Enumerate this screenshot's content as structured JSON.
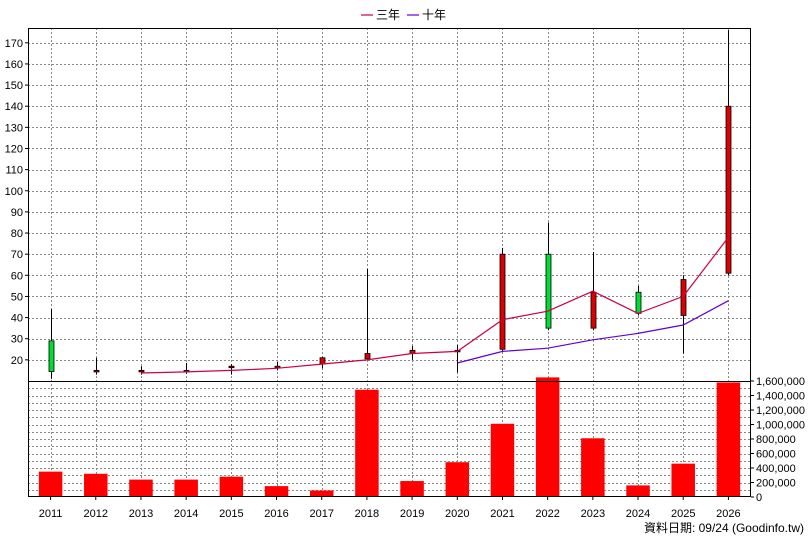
{
  "chart_data": {
    "type": "candlestick-with-volume",
    "legend": {
      "placement": "top-center",
      "items": [
        {
          "name": "三年",
          "color": "#cc0044"
        },
        {
          "name": "十年",
          "color": "#6600cc"
        }
      ]
    },
    "price_axis": {
      "ticks": [
        20,
        30,
        40,
        50,
        60,
        70,
        80,
        90,
        100,
        110,
        120,
        130,
        140,
        150,
        160,
        170
      ],
      "range": [
        10,
        177
      ],
      "position": "left"
    },
    "volume_axis": {
      "ticks": [
        "0",
        "200,000",
        "400,000",
        "600,000",
        "800,000",
        "1,000,000",
        "1,200,000",
        "1,400,000",
        "1,600,000"
      ],
      "range": [
        0,
        1600000
      ],
      "position": "right"
    },
    "grid": true,
    "years": [
      "2011",
      "2012",
      "2013",
      "2014",
      "2015",
      "2016",
      "2017",
      "2018",
      "2019",
      "2020",
      "2021",
      "2022",
      "2023",
      "2024",
      "2025",
      "2026"
    ],
    "ohlc": [
      {
        "open": 14.5,
        "high": 44,
        "low": 11,
        "close": 29
      },
      {
        "open": 15,
        "high": 21,
        "low": 13,
        "close": 14.8
      },
      {
        "open": 15,
        "high": 17,
        "low": 13,
        "close": 14.3
      },
      {
        "open": 15,
        "high": 18.5,
        "low": 13.5,
        "close": 14.7
      },
      {
        "open": 17,
        "high": 18,
        "low": 13,
        "close": 16.3
      },
      {
        "open": 17,
        "high": 19,
        "low": 15,
        "close": 16.2
      },
      {
        "open": 21,
        "high": 21.5,
        "low": 16,
        "close": 18
      },
      {
        "open": 23,
        "high": 63,
        "low": 20,
        "close": 20.5
      },
      {
        "open": 24.5,
        "high": 26.5,
        "low": 20,
        "close": 23
      },
      {
        "open": 24.5,
        "high": 27,
        "low": 14,
        "close": 24
      },
      {
        "open": 70,
        "high": 73,
        "low": 24,
        "close": 25
      },
      {
        "open": 35,
        "high": 85,
        "low": 34,
        "close": 70
      },
      {
        "open": 52,
        "high": 71,
        "low": 34,
        "close": 35
      },
      {
        "open": 42,
        "high": 55,
        "low": 41,
        "close": 52
      },
      {
        "open": 58,
        "high": 60,
        "low": 23,
        "close": 41
      },
      {
        "open": 140,
        "high": 176,
        "low": 60,
        "close": 61
      }
    ],
    "series": [
      {
        "name": "三年",
        "start_index": 2,
        "values": [
          13.8,
          14.3,
          15,
          16,
          18,
          20,
          23,
          24,
          39,
          43,
          52.5,
          42,
          50,
          78
        ]
      },
      {
        "name": "十年",
        "start_index": 9,
        "values": [
          18.5,
          24,
          25.5,
          29.5,
          32.5,
          36.5,
          48
        ]
      }
    ],
    "volume": [
      350000,
      320000,
      240000,
      240000,
      280000,
      150000,
      90000,
      1480000,
      220000,
      480000,
      1010000,
      1650000,
      810000,
      160000,
      460000,
      1580000
    ]
  },
  "colors": {
    "up": "#00dd33",
    "down": "#dd0000",
    "volume": "#ff0000",
    "grid": "#888888",
    "frame": "#000000"
  },
  "footer": {
    "credit": "資料日期: 09/24  (Goodinfo.tw)"
  }
}
